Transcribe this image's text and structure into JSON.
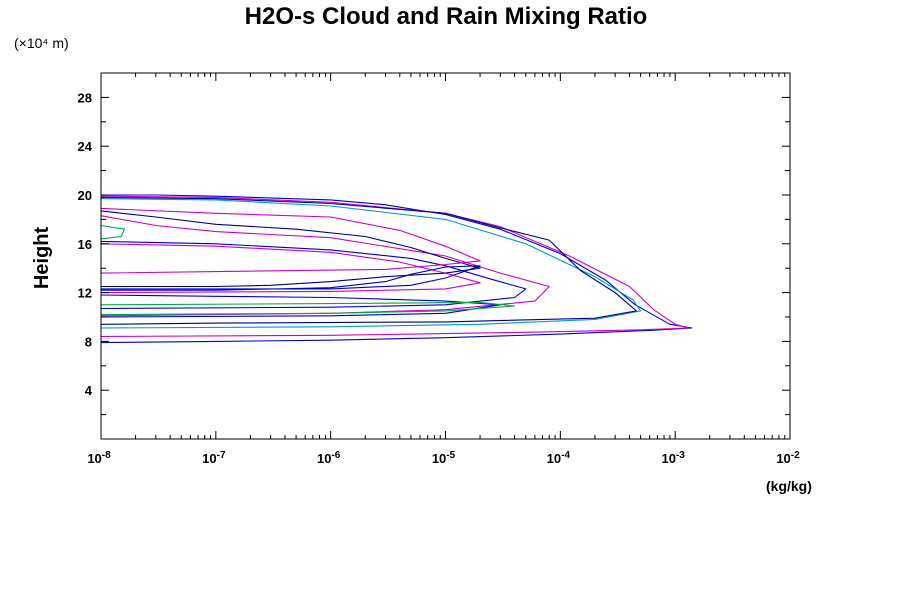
{
  "chart_data": {
    "type": "line",
    "title": "H2O-s Cloud and Rain Mixing Ratio",
    "ylabel": "Height",
    "y_unit": "(×10⁴ m)",
    "x_unit": "(kg/kg)",
    "x_scale": "log",
    "xlim": [
      1e-08,
      0.01
    ],
    "ylim": [
      0,
      30
    ],
    "x_tick_labels": [
      {
        "base": "10",
        "exp": "-8",
        "value": 1e-08
      },
      {
        "base": "10",
        "exp": "-7",
        "value": 1e-07
      },
      {
        "base": "10",
        "exp": "-6",
        "value": 1e-06
      },
      {
        "base": "10",
        "exp": "-5",
        "value": 1e-05
      },
      {
        "base": "10",
        "exp": "-4",
        "value": 0.0001
      },
      {
        "base": "10",
        "exp": "-3",
        "value": 0.001
      },
      {
        "base": "10",
        "exp": "-2",
        "value": 0.01
      }
    ],
    "y_ticks": [
      4,
      8,
      12,
      16,
      20,
      24,
      28
    ],
    "grid": false,
    "legend": "none",
    "series": [
      {
        "color": "#0000cc",
        "points": [
          [
            1e-08,
            20.0
          ],
          [
            3e-08,
            20.0
          ],
          [
            1e-07,
            19.9
          ],
          [
            1e-06,
            19.6
          ],
          [
            3e-06,
            19.2
          ],
          [
            1e-05,
            18.4
          ],
          [
            3e-05,
            17.2
          ],
          [
            0.0001,
            15.2
          ],
          [
            0.00025,
            13.0
          ],
          [
            0.00045,
            11.0
          ],
          [
            0.0009,
            9.4
          ],
          [
            0.0014,
            9.1
          ],
          [
            0.0006,
            8.9
          ],
          [
            0.0001,
            8.6
          ],
          [
            1e-05,
            8.3
          ],
          [
            1e-06,
            8.1
          ],
          [
            1e-07,
            8.0
          ],
          [
            1e-08,
            7.9
          ]
        ]
      },
      {
        "color": "#cc00cc",
        "points": [
          [
            1e-08,
            19.9
          ],
          [
            1e-07,
            19.8
          ],
          [
            1e-06,
            19.4
          ],
          [
            1e-05,
            18.5
          ],
          [
            3e-05,
            17.4
          ],
          [
            0.00012,
            15.0
          ],
          [
            0.0004,
            12.5
          ],
          [
            0.00065,
            10.6
          ],
          [
            0.001,
            9.4
          ],
          [
            0.0013,
            9.1
          ],
          [
            0.0005,
            8.95
          ],
          [
            5e-05,
            8.75
          ],
          [
            1e-06,
            8.5
          ],
          [
            1e-08,
            8.4
          ]
        ]
      },
      {
        "color": "#0099cc",
        "points": [
          [
            1e-08,
            19.7
          ],
          [
            1e-07,
            19.6
          ],
          [
            1e-06,
            19.1
          ],
          [
            1e-05,
            18.0
          ],
          [
            5e-05,
            16.0
          ],
          [
            0.0002,
            13.3
          ],
          [
            0.00043,
            11.4
          ],
          [
            0.0005,
            10.5
          ],
          [
            0.0002,
            9.8
          ],
          [
            2e-05,
            9.4
          ],
          [
            1e-06,
            9.2
          ],
          [
            1e-08,
            9.1
          ]
        ]
      },
      {
        "color": "#000088",
        "points": [
          [
            1e-08,
            19.8
          ],
          [
            1e-07,
            19.7
          ],
          [
            1e-06,
            19.3
          ],
          [
            1e-05,
            18.5
          ],
          [
            3e-05,
            17.3
          ],
          [
            8e-05,
            16.3
          ],
          [
            0.00015,
            13.8
          ],
          [
            0.0003,
            12.0
          ],
          [
            0.00046,
            10.5
          ],
          [
            0.0002,
            9.9
          ],
          [
            1e-05,
            9.6
          ],
          [
            1e-07,
            9.5
          ],
          [
            1e-08,
            9.4
          ]
        ]
      },
      {
        "color": "#cc00cc",
        "points": [
          [
            1e-08,
            18.3
          ],
          [
            3e-08,
            17.5
          ],
          [
            1e-07,
            17.0
          ],
          [
            1e-06,
            16.5
          ],
          [
            1e-05,
            15.0
          ],
          [
            3e-05,
            13.6
          ],
          [
            8e-05,
            12.5
          ],
          [
            6e-05,
            11.3
          ],
          [
            1e-05,
            10.6
          ],
          [
            1e-06,
            10.3
          ],
          [
            1e-08,
            10.1
          ]
        ]
      },
      {
        "color": "#0000cc",
        "points": [
          [
            1e-08,
            16.2
          ],
          [
            1e-07,
            16.0
          ],
          [
            1e-06,
            15.5
          ],
          [
            5e-06,
            14.8
          ],
          [
            1e-05,
            14.2
          ],
          [
            2.5e-05,
            13.1
          ],
          [
            5e-05,
            12.3
          ],
          [
            4e-05,
            11.6
          ],
          [
            1e-05,
            11.0
          ],
          [
            1e-06,
            10.8
          ],
          [
            1e-08,
            10.7
          ]
        ]
      },
      {
        "color": "#cc00cc",
        "points": [
          [
            1e-08,
            16.0
          ],
          [
            1e-07,
            15.8
          ],
          [
            1e-06,
            15.3
          ],
          [
            4e-06,
            14.5
          ],
          [
            1e-05,
            13.6
          ],
          [
            2e-05,
            12.8
          ],
          [
            1e-05,
            12.3
          ],
          [
            1e-06,
            12.1
          ],
          [
            1e-08,
            12.0
          ]
        ]
      },
      {
        "color": "#00aa44",
        "points": [
          [
            1e-08,
            17.5
          ],
          [
            1.6e-08,
            17.2
          ],
          [
            1.5e-08,
            16.6
          ],
          [
            1e-08,
            16.4
          ]
        ]
      },
      {
        "color": "#0000cc",
        "points": [
          [
            1e-08,
            11.8
          ],
          [
            1e-07,
            11.7
          ],
          [
            1e-06,
            11.6
          ],
          [
            1e-05,
            11.3
          ],
          [
            3e-05,
            11.0
          ],
          [
            1e-05,
            10.3
          ],
          [
            1e-06,
            10.1
          ],
          [
            1e-08,
            10.0
          ]
        ]
      },
      {
        "color": "#00aa44",
        "points": [
          [
            1e-08,
            10.2
          ],
          [
            1e-06,
            10.3
          ],
          [
            1e-05,
            10.5
          ],
          [
            4e-05,
            10.9
          ],
          [
            2e-05,
            11.2
          ],
          [
            1e-06,
            11.1
          ],
          [
            1e-08,
            11.0
          ]
        ]
      },
      {
        "color": "#0000cc",
        "points": [
          [
            1e-08,
            12.2
          ],
          [
            1e-07,
            12.2
          ],
          [
            1e-06,
            12.4
          ],
          [
            3e-06,
            12.9
          ],
          [
            5e-06,
            13.5
          ],
          [
            1e-05,
            14.1
          ],
          [
            2e-05,
            14.2
          ],
          [
            1e-05,
            13.2
          ],
          [
            5e-06,
            12.6
          ],
          [
            1e-06,
            12.3
          ],
          [
            1e-08,
            12.3
          ]
        ]
      },
      {
        "color": "#000088",
        "points": [
          [
            1e-08,
            18.7
          ],
          [
            3e-08,
            18.2
          ],
          [
            1e-07,
            17.6
          ],
          [
            5e-07,
            17.2
          ],
          [
            2e-06,
            16.6
          ],
          [
            5e-06,
            15.7
          ],
          [
            1e-05,
            14.8
          ],
          [
            2e-05,
            14.0
          ],
          [
            1e-05,
            13.6
          ],
          [
            3e-06,
            13.3
          ],
          [
            1e-06,
            12.9
          ],
          [
            3e-07,
            12.6
          ],
          [
            1e-07,
            12.5
          ],
          [
            1e-08,
            12.5
          ]
        ]
      },
      {
        "color": "#cc00cc",
        "points": [
          [
            1e-08,
            18.9
          ],
          [
            1e-07,
            18.5
          ],
          [
            1e-06,
            18.2
          ],
          [
            4e-06,
            17.1
          ],
          [
            1e-05,
            15.8
          ],
          [
            2e-05,
            14.6
          ],
          [
            1e-05,
            14.3
          ],
          [
            3e-06,
            13.9
          ],
          [
            1e-08,
            13.6
          ]
        ]
      }
    ]
  }
}
